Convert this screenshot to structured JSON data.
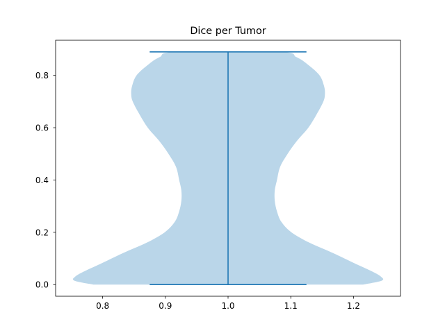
{
  "chart_data": {
    "type": "violin",
    "title": "Dice per Tumor",
    "xlabel": "",
    "ylabel": "",
    "xlim": [
      0.725,
      1.275
    ],
    "ylim": [
      -0.0445,
      0.9345
    ],
    "xticks": [
      0.8,
      0.9,
      1.0,
      1.1,
      1.2
    ],
    "xtick_labels": [
      "0.8",
      "0.9",
      "1.0",
      "1.1",
      "1.2"
    ],
    "yticks": [
      0.0,
      0.2,
      0.4,
      0.6,
      0.8
    ],
    "ytick_labels": [
      "0.0",
      "0.2",
      "0.4",
      "0.6",
      "0.8"
    ],
    "grid": false,
    "legend": "none",
    "position": 1.0,
    "cap_half_width": 0.125,
    "data_min": 0.0,
    "data_max": 0.89,
    "violin_color": "#bad6e9",
    "line_color": "#1f77b4",
    "density_profile": [
      {
        "y": 0.0,
        "half_width": 0.215
      },
      {
        "y": 0.015,
        "half_width": 0.245
      },
      {
        "y": 0.03,
        "half_width": 0.244
      },
      {
        "y": 0.05,
        "half_width": 0.23
      },
      {
        "y": 0.08,
        "half_width": 0.203
      },
      {
        "y": 0.12,
        "half_width": 0.168
      },
      {
        "y": 0.16,
        "half_width": 0.13
      },
      {
        "y": 0.2,
        "half_width": 0.101
      },
      {
        "y": 0.24,
        "half_width": 0.085
      },
      {
        "y": 0.28,
        "half_width": 0.078
      },
      {
        "y": 0.32,
        "half_width": 0.0745
      },
      {
        "y": 0.36,
        "half_width": 0.0745
      },
      {
        "y": 0.4,
        "half_width": 0.078
      },
      {
        "y": 0.45,
        "half_width": 0.083
      },
      {
        "y": 0.5,
        "half_width": 0.095
      },
      {
        "y": 0.55,
        "half_width": 0.11
      },
      {
        "y": 0.6,
        "half_width": 0.128
      },
      {
        "y": 0.65,
        "half_width": 0.141
      },
      {
        "y": 0.7,
        "half_width": 0.152
      },
      {
        "y": 0.73,
        "half_width": 0.1545
      },
      {
        "y": 0.76,
        "half_width": 0.153
      },
      {
        "y": 0.8,
        "half_width": 0.146
      },
      {
        "y": 0.84,
        "half_width": 0.128
      },
      {
        "y": 0.87,
        "half_width": 0.109
      },
      {
        "y": 0.89,
        "half_width": 0.082
      }
    ]
  }
}
